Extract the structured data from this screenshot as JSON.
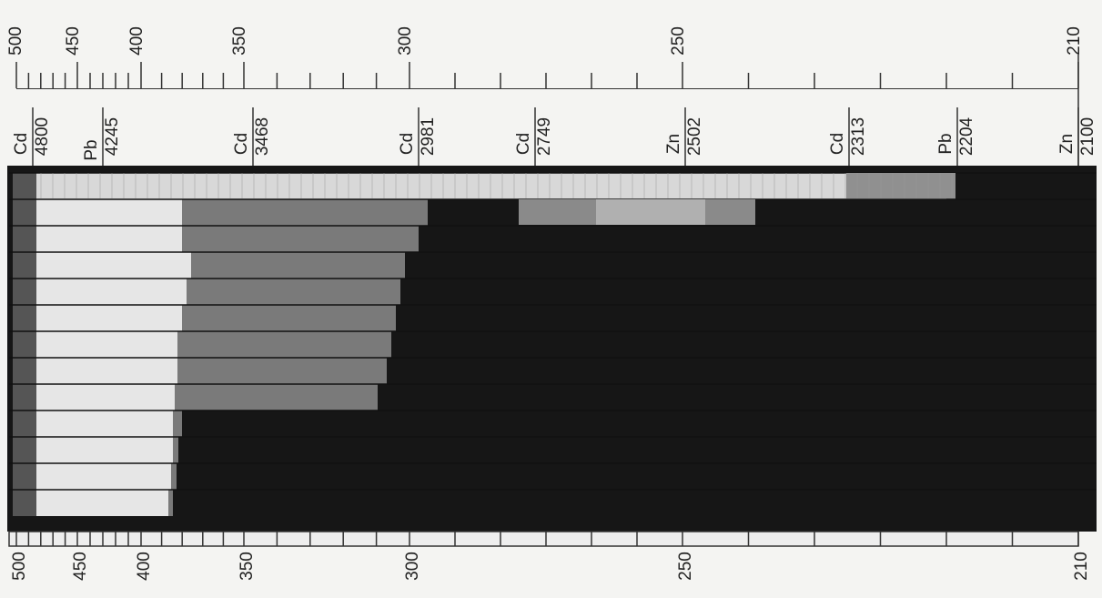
{
  "top_scale": {
    "labels": [
      500,
      450,
      400,
      350,
      300,
      250,
      210
    ]
  },
  "bottom_scale": {
    "labels": [
      500,
      450,
      400,
      350,
      300,
      250,
      210
    ]
  },
  "lines": [
    {
      "element": "Cd",
      "wavelength": 4800
    },
    {
      "element": "Pb",
      "wavelength": 4245
    },
    {
      "element": "Cd",
      "wavelength": 3468
    },
    {
      "element": "Cd",
      "wavelength": 2981
    },
    {
      "element": "Cd",
      "wavelength": 2749
    },
    {
      "element": "Zn",
      "wavelength": 2502
    },
    {
      "element": "Cd",
      "wavelength": 2313
    },
    {
      "element": "Pb",
      "wavelength": 2204
    },
    {
      "element": "Zn",
      "wavelength": 2100
    }
  ]
}
